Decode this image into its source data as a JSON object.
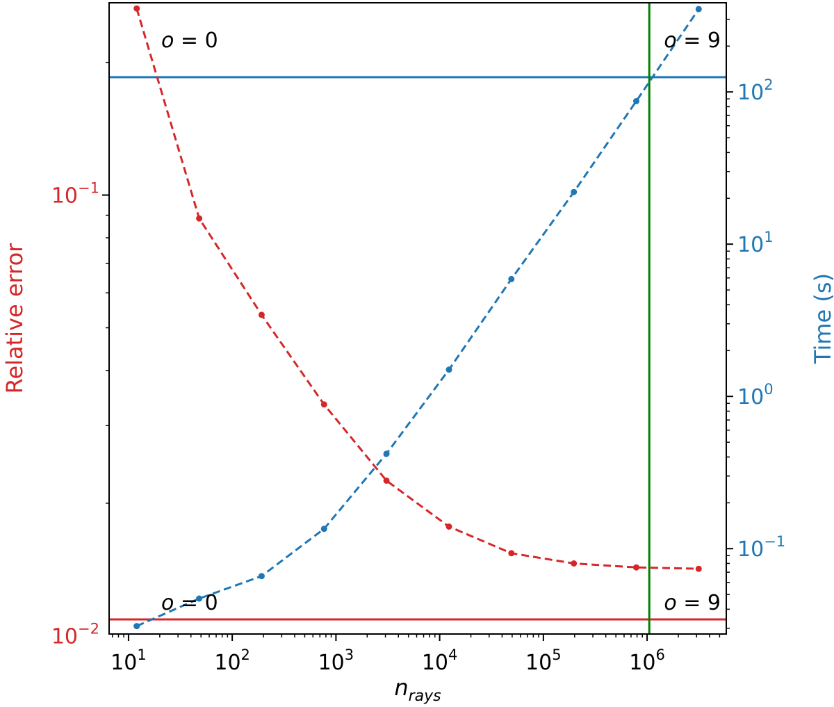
{
  "chart_data": {
    "type": "line",
    "title": "",
    "xlabel": "n",
    "xlabel_sub": "rays",
    "xscale": "log",
    "xlim": [
      6.5,
      5800000
    ],
    "xticks": [
      {
        "value": 10,
        "base": "10",
        "exp": "1"
      },
      {
        "value": 100,
        "base": "10",
        "exp": "2"
      },
      {
        "value": 1000,
        "base": "10",
        "exp": "3"
      },
      {
        "value": 10000,
        "base": "10",
        "exp": "4"
      },
      {
        "value": 100000,
        "base": "10",
        "exp": "5"
      },
      {
        "value": 1000000,
        "base": "10",
        "exp": "6"
      }
    ],
    "y_left": {
      "label": "Relative error",
      "color": "#d62728",
      "scale": "log",
      "lim": [
        0.0101,
        0.273
      ],
      "ticks": [
        {
          "value": 0.01,
          "base": "10",
          "exp": "−2"
        },
        {
          "value": 0.1,
          "base": "10",
          "exp": "−1"
        }
      ]
    },
    "y_right": {
      "label": "Time (s)",
      "color": "#1f77b4",
      "scale": "log",
      "lim": [
        0.0275,
        385
      ],
      "ticks": [
        {
          "value": 0.1,
          "base": "10",
          "exp": "−1"
        },
        {
          "value": 1,
          "base": "10",
          "exp": "0"
        },
        {
          "value": 10,
          "base": "10",
          "exp": "1"
        },
        {
          "value": 100,
          "base": "10",
          "exp": "2"
        }
      ]
    },
    "series": [
      {
        "axis": "left",
        "color": "#d62728",
        "linestyle": "dashed",
        "x": [
          12,
          48,
          192,
          768,
          3072,
          12288,
          49152,
          196608,
          786432,
          3145728
        ],
        "y": [
          0.265,
          0.0885,
          0.0535,
          0.0335,
          0.0225,
          0.0177,
          0.0154,
          0.0146,
          0.0143,
          0.0142
        ]
      },
      {
        "axis": "right",
        "color": "#1f77b4",
        "linestyle": "dashed",
        "x": [
          12,
          48,
          192,
          768,
          3072,
          12288,
          49152,
          196608,
          786432,
          3145728
        ],
        "y": [
          0.031,
          0.047,
          0.066,
          0.135,
          0.42,
          1.5,
          5.9,
          22,
          87,
          350
        ]
      }
    ],
    "reference_lines": [
      {
        "orientation": "horizontal",
        "axis": "left",
        "value": 0.0109,
        "color": "#d62728"
      },
      {
        "orientation": "horizontal",
        "axis": "right",
        "value": 125,
        "color": "#1f77b4"
      },
      {
        "orientation": "vertical",
        "value": 1050000,
        "color": "#008000"
      }
    ],
    "annotations": [
      {
        "var": "o",
        "eq": " = 0",
        "position": "top-left"
      },
      {
        "var": "o",
        "eq": " = 9",
        "position": "top-right"
      },
      {
        "var": "o",
        "eq": " = 0",
        "position": "bottom-left"
      },
      {
        "var": "o",
        "eq": " = 9",
        "position": "bottom-right"
      }
    ],
    "grid": false,
    "legend": "none"
  }
}
